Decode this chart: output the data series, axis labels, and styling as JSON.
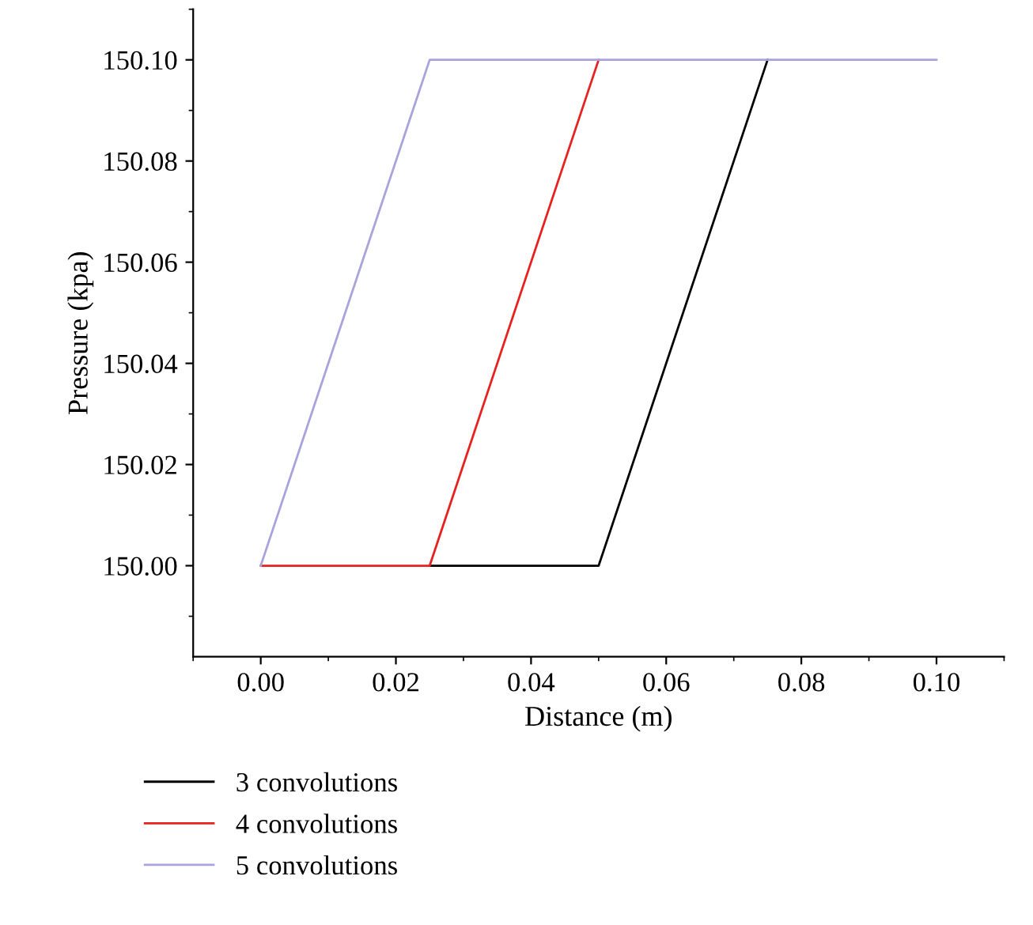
{
  "chart_data": {
    "type": "line",
    "xlabel": "Distance (m)",
    "ylabel": "Pressure (kpa)",
    "xlim": [
      -0.01,
      0.11
    ],
    "xticks": [
      {
        "value": 0,
        "label": "0.00"
      },
      {
        "value": 0.02,
        "label": "0.02"
      },
      {
        "value": 0.04,
        "label": "0.04"
      },
      {
        "value": 0.06,
        "label": "0.06"
      },
      {
        "value": 0.08,
        "label": "0.08"
      },
      {
        "value": 0.1,
        "label": "0.10"
      }
    ],
    "ylim": [
      149.982,
      150.11
    ],
    "yticks": [
      {
        "value": 150.0,
        "label": "150.00"
      },
      {
        "value": 150.02,
        "label": "150.02"
      },
      {
        "value": 150.04,
        "label": "150.04"
      },
      {
        "value": 150.06,
        "label": "150.06"
      },
      {
        "value": 150.08,
        "label": "150.08"
      },
      {
        "value": 150.1,
        "label": "150.10"
      }
    ],
    "grid": false,
    "legend": "bottom",
    "marker": "none",
    "line_style": "solid",
    "series": [
      {
        "name": "3 convolutions",
        "color": "#000000",
        "x": [
          0.025,
          0.05,
          0.075
        ],
        "values": [
          150.0,
          150.0,
          150.1
        ]
      },
      {
        "name": "4 convolutions",
        "color": "#e8211e",
        "x": [
          0,
          0.025,
          0.05
        ],
        "values": [
          150.0,
          150.0,
          150.1
        ]
      },
      {
        "name": "5 convolutions",
        "color": "#a7a3dc",
        "x": [
          0,
          0.025,
          0.1
        ],
        "values": [
          150.0,
          150.1,
          150.1
        ]
      }
    ]
  }
}
